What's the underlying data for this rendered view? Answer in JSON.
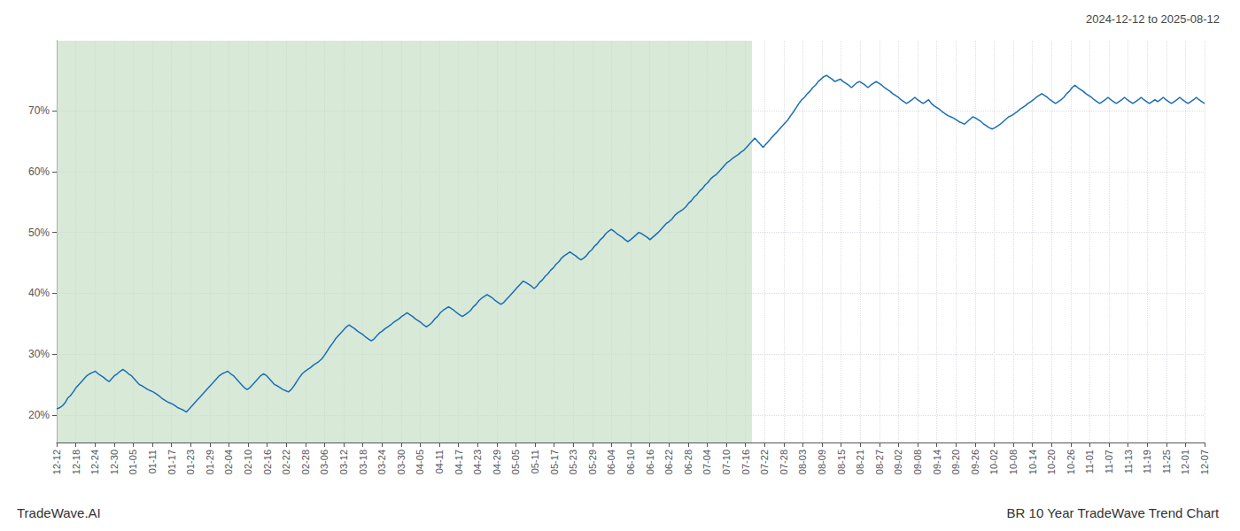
{
  "chart_data": {
    "type": "line",
    "title": "BR 10 Year TradeWave Trend Chart",
    "subtitle": "2024-12-12 to 2025-08-12",
    "annotations": [
      "TradeWave.AI"
    ],
    "color": "#1a6eb5",
    "grid": true,
    "shaded_region": {
      "from": 0,
      "to": 252,
      "color": "#c8dfc8"
    },
    "xlim": [
      0,
      416
    ],
    "xticks": [
      {
        "value": 0,
        "label": "12-12"
      },
      {
        "value": 6.933333,
        "label": "12-18"
      },
      {
        "value": 13.866667,
        "label": "12-24"
      },
      {
        "value": 20.8,
        "label": "12-30"
      },
      {
        "value": 27.733333,
        "label": "01-05"
      },
      {
        "value": 34.666667,
        "label": "01-11"
      },
      {
        "value": 41.6,
        "label": "01-17"
      },
      {
        "value": 48.533333,
        "label": "01-23"
      },
      {
        "value": 55.466667,
        "label": "01-29"
      },
      {
        "value": 62.4,
        "label": "02-04"
      },
      {
        "value": 69.333333,
        "label": "02-10"
      },
      {
        "value": 76.266667,
        "label": "02-16"
      },
      {
        "value": 83.2,
        "label": "02-22"
      },
      {
        "value": 90.133333,
        "label": "02-28"
      },
      {
        "value": 97.066667,
        "label": "03-06"
      },
      {
        "value": 104,
        "label": "03-12"
      },
      {
        "value": 110.933333,
        "label": "03-18"
      },
      {
        "value": 117.866667,
        "label": "03-24"
      },
      {
        "value": 124.8,
        "label": "03-30"
      },
      {
        "value": 131.733333,
        "label": "04-05"
      },
      {
        "value": 138.666667,
        "label": "04-11"
      },
      {
        "value": 145.6,
        "label": "04-17"
      },
      {
        "value": 152.533333,
        "label": "04-23"
      },
      {
        "value": 159.466667,
        "label": "04-29"
      },
      {
        "value": 166.4,
        "label": "05-05"
      },
      {
        "value": 173.333333,
        "label": "05-11"
      },
      {
        "value": 180.266667,
        "label": "05-17"
      },
      {
        "value": 187.2,
        "label": "05-23"
      },
      {
        "value": 194.133333,
        "label": "05-29"
      },
      {
        "value": 201.066667,
        "label": "06-04"
      },
      {
        "value": 208,
        "label": "06-10"
      },
      {
        "value": 214.933333,
        "label": "06-16"
      },
      {
        "value": 221.866667,
        "label": "06-22"
      },
      {
        "value": 228.8,
        "label": "06-28"
      },
      {
        "value": 235.733333,
        "label": "07-04"
      },
      {
        "value": 242.666667,
        "label": "07-10"
      },
      {
        "value": 249.6,
        "label": "07-16"
      },
      {
        "value": 256.533333,
        "label": "07-22"
      },
      {
        "value": 263.466667,
        "label": "07-28"
      },
      {
        "value": 270.4,
        "label": "08-03"
      },
      {
        "value": 277.333333,
        "label": "08-09"
      },
      {
        "value": 284.266667,
        "label": "08-15"
      },
      {
        "value": 291.2,
        "label": "08-21"
      },
      {
        "value": 298.133333,
        "label": "08-27"
      },
      {
        "value": 305.066667,
        "label": "09-02"
      },
      {
        "value": 312,
        "label": "09-08"
      },
      {
        "value": 318.933333,
        "label": "09-14"
      },
      {
        "value": 325.866667,
        "label": "09-20"
      },
      {
        "value": 332.8,
        "label": "09-26"
      },
      {
        "value": 339.733333,
        "label": "10-02"
      },
      {
        "value": 346.666667,
        "label": "10-08"
      },
      {
        "value": 353.6,
        "label": "10-14"
      },
      {
        "value": 360.533333,
        "label": "10-20"
      },
      {
        "value": 367.466667,
        "label": "10-26"
      },
      {
        "value": 374.4,
        "label": "11-01"
      },
      {
        "value": 381.333333,
        "label": "11-07"
      },
      {
        "value": 388.266667,
        "label": "11-13"
      },
      {
        "value": 395.2,
        "label": "11-19"
      },
      {
        "value": 402.133333,
        "label": "11-25"
      },
      {
        "value": 409.066667,
        "label": "12-01"
      },
      {
        "value": 416,
        "label": "12-07"
      }
    ],
    "ylim": [
      0.155,
      0.815
    ],
    "yticks": [
      {
        "value": 0.2,
        "label": "20%"
      },
      {
        "value": 0.3,
        "label": "30%"
      },
      {
        "value": 0.4,
        "label": "40%"
      },
      {
        "value": 0.5,
        "label": "50%"
      },
      {
        "value": 0.6,
        "label": "60%"
      },
      {
        "value": 0.7,
        "label": "70%"
      }
    ],
    "values": [
      0.21,
      0.212,
      0.215,
      0.22,
      0.228,
      0.232,
      0.238,
      0.245,
      0.25,
      0.255,
      0.26,
      0.265,
      0.268,
      0.27,
      0.272,
      0.268,
      0.265,
      0.262,
      0.258,
      0.255,
      0.26,
      0.265,
      0.268,
      0.272,
      0.275,
      0.272,
      0.268,
      0.265,
      0.26,
      0.255,
      0.25,
      0.248,
      0.245,
      0.242,
      0.24,
      0.238,
      0.235,
      0.232,
      0.228,
      0.225,
      0.222,
      0.22,
      0.218,
      0.215,
      0.212,
      0.21,
      0.208,
      0.205,
      0.21,
      0.215,
      0.22,
      0.225,
      0.23,
      0.235,
      0.24,
      0.245,
      0.25,
      0.255,
      0.26,
      0.265,
      0.268,
      0.27,
      0.272,
      0.268,
      0.265,
      0.26,
      0.255,
      0.25,
      0.245,
      0.242,
      0.245,
      0.25,
      0.255,
      0.26,
      0.265,
      0.268,
      0.265,
      0.26,
      0.255,
      0.25,
      0.248,
      0.245,
      0.242,
      0.24,
      0.238,
      0.242,
      0.248,
      0.255,
      0.262,
      0.268,
      0.272,
      0.275,
      0.278,
      0.282,
      0.285,
      0.288,
      0.292,
      0.298,
      0.305,
      0.312,
      0.318,
      0.325,
      0.33,
      0.335,
      0.34,
      0.345,
      0.348,
      0.345,
      0.342,
      0.338,
      0.335,
      0.332,
      0.328,
      0.325,
      0.322,
      0.325,
      0.33,
      0.335,
      0.338,
      0.342,
      0.345,
      0.348,
      0.352,
      0.355,
      0.358,
      0.362,
      0.365,
      0.368,
      0.365,
      0.362,
      0.358,
      0.355,
      0.352,
      0.348,
      0.345,
      0.348,
      0.352,
      0.358,
      0.362,
      0.368,
      0.372,
      0.375,
      0.378,
      0.375,
      0.372,
      0.368,
      0.365,
      0.362,
      0.365,
      0.368,
      0.372,
      0.378,
      0.382,
      0.388,
      0.392,
      0.395,
      0.398,
      0.395,
      0.392,
      0.388,
      0.385,
      0.382,
      0.385,
      0.39,
      0.395,
      0.4,
      0.405,
      0.41,
      0.415,
      0.42,
      0.418,
      0.415,
      0.412,
      0.408,
      0.412,
      0.418,
      0.422,
      0.428,
      0.432,
      0.438,
      0.442,
      0.448,
      0.452,
      0.458,
      0.462,
      0.465,
      0.468,
      0.465,
      0.462,
      0.458,
      0.455,
      0.458,
      0.462,
      0.468,
      0.472,
      0.478,
      0.482,
      0.488,
      0.492,
      0.498,
      0.502,
      0.505,
      0.502,
      0.498,
      0.495,
      0.492,
      0.488,
      0.485,
      0.488,
      0.492,
      0.496,
      0.5,
      0.498,
      0.495,
      0.492,
      0.488,
      0.492,
      0.496,
      0.5,
      0.505,
      0.51,
      0.515,
      0.518,
      0.522,
      0.528,
      0.532,
      0.535,
      0.538,
      0.542,
      0.548,
      0.552,
      0.558,
      0.562,
      0.568,
      0.572,
      0.578,
      0.582,
      0.588,
      0.592,
      0.595,
      0.6,
      0.605,
      0.61,
      0.615,
      0.618,
      0.622,
      0.625,
      0.628,
      0.632,
      0.635,
      0.64,
      0.645,
      0.65,
      0.655,
      0.65,
      0.645,
      0.64,
      0.645,
      0.65,
      0.655,
      0.66,
      0.665,
      0.67,
      0.675,
      0.68,
      0.685,
      0.692,
      0.698,
      0.705,
      0.712,
      0.718,
      0.722,
      0.728,
      0.732,
      0.738,
      0.742,
      0.748,
      0.752,
      0.756,
      0.758,
      0.755,
      0.752,
      0.748,
      0.75,
      0.752,
      0.748,
      0.745,
      0.742,
      0.738,
      0.742,
      0.746,
      0.748,
      0.745,
      0.742,
      0.738,
      0.742,
      0.745,
      0.748,
      0.745,
      0.742,
      0.738,
      0.735,
      0.732,
      0.728,
      0.725,
      0.722,
      0.718,
      0.715,
      0.712,
      0.715,
      0.718,
      0.722,
      0.718,
      0.715,
      0.712,
      0.715,
      0.718,
      0.712,
      0.708,
      0.705,
      0.702,
      0.698,
      0.695,
      0.692,
      0.69,
      0.688,
      0.685,
      0.682,
      0.68,
      0.678,
      0.682,
      0.686,
      0.69,
      0.688,
      0.685,
      0.682,
      0.678,
      0.675,
      0.672,
      0.67,
      0.672,
      0.675,
      0.678,
      0.682,
      0.686,
      0.69,
      0.692,
      0.695,
      0.698,
      0.702,
      0.705,
      0.708,
      0.712,
      0.715,
      0.718,
      0.722,
      0.725,
      0.728,
      0.725,
      0.722,
      0.718,
      0.715,
      0.712,
      0.715,
      0.718,
      0.722,
      0.728,
      0.732,
      0.738,
      0.742,
      0.738,
      0.735,
      0.732,
      0.728,
      0.725,
      0.722,
      0.718,
      0.715,
      0.712,
      0.715,
      0.718,
      0.722,
      0.718,
      0.715,
      0.712,
      0.715,
      0.718,
      0.722,
      0.718,
      0.715,
      0.712,
      0.715,
      0.718,
      0.722,
      0.718,
      0.715,
      0.712,
      0.715,
      0.718,
      0.715,
      0.718,
      0.722,
      0.718,
      0.715,
      0.712,
      0.715,
      0.718,
      0.722,
      0.718,
      0.715,
      0.712,
      0.715,
      0.718,
      0.722,
      0.718,
      0.715,
      0.712
    ]
  }
}
